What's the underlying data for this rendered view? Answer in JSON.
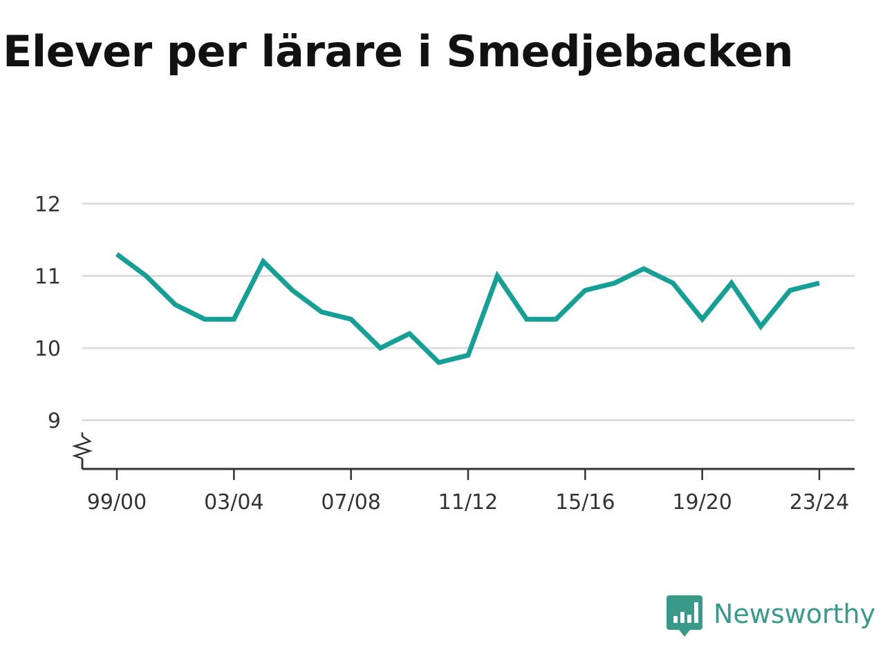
{
  "chart_data": {
    "type": "line",
    "title": "Elever per lärare i Smedjebacken",
    "xlabel": "",
    "ylabel": "",
    "ylim": [
      8.35,
      12
    ],
    "y_ticks": [
      9,
      10,
      11,
      12
    ],
    "y_tick_labels": [
      "9",
      "10",
      "11",
      "12"
    ],
    "y_axis_break": true,
    "grid": true,
    "x_tick_labels": [
      "99/00",
      "03/04",
      "07/08",
      "11/12",
      "15/16",
      "19/20",
      "23/24"
    ],
    "x": [
      "99/00",
      "00/01",
      "01/02",
      "02/03",
      "03/04",
      "04/05",
      "05/06",
      "06/07",
      "07/08",
      "08/09",
      "09/10",
      "10/11",
      "11/12",
      "12/13",
      "13/14",
      "14/15",
      "15/16",
      "16/17",
      "17/18",
      "18/19",
      "19/20",
      "20/21",
      "21/22",
      "22/23",
      "23/24"
    ],
    "series": [
      {
        "values": [
          11.3,
          11.0,
          10.6,
          10.4,
          10.4,
          11.2,
          10.8,
          10.5,
          10.4,
          10.0,
          10.2,
          9.8,
          9.9,
          11.0,
          10.4,
          10.4,
          10.8,
          10.9,
          11.1,
          10.9,
          10.4,
          10.9,
          10.3,
          10.8,
          10.9
        ]
      }
    ],
    "colors": {
      "line": "#169f94",
      "grid": "#dddddd",
      "axis": "#333333"
    }
  },
  "brand": {
    "name": "Newsworthy",
    "color": "#3a9a8a",
    "icon": "newsworthy-logo-icon"
  }
}
